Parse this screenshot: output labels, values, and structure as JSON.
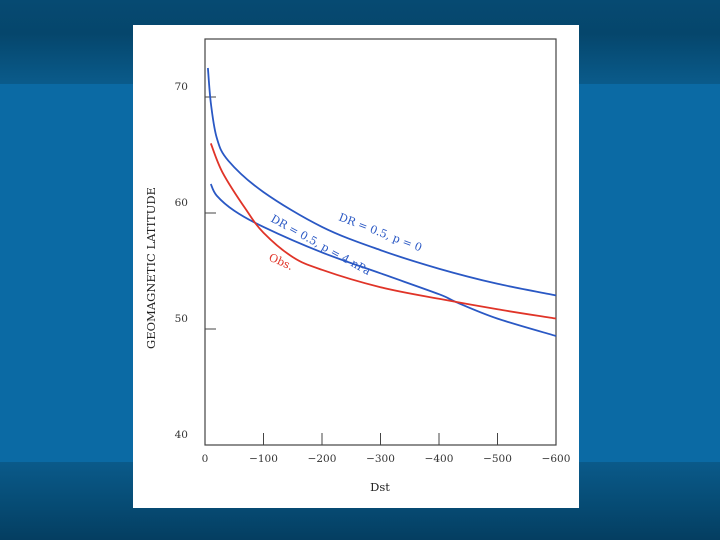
{
  "chart_data": {
    "type": "line",
    "xlabel": "Dst",
    "ylabel": "GEOMAGNETIC LATITUDE",
    "xlim": [
      0,
      -600
    ],
    "ylim": [
      40,
      75
    ],
    "x_ticks": [
      0,
      -100,
      -200,
      -300,
      -400,
      -500,
      -600
    ],
    "x_tick_labels": [
      "0",
      "−100",
      "−200",
      "−300",
      "−400",
      "−500",
      "−600"
    ],
    "y_ticks": [
      40,
      50,
      60,
      70
    ],
    "y_tick_labels": [
      "40",
      "50",
      "60",
      "70"
    ],
    "grid": false,
    "series": [
      {
        "name": "DR = 0.5, p = 0",
        "color": "#2a58c4",
        "points": [
          [
            -5,
            72.5
          ],
          [
            -10,
            69.5
          ],
          [
            -20,
            66.5
          ],
          [
            -40,
            64.5
          ],
          [
            -100,
            61.8
          ],
          [
            -200,
            58.8
          ],
          [
            -300,
            56.8
          ],
          [
            -400,
            55.2
          ],
          [
            -500,
            53.9
          ],
          [
            -600,
            52.9
          ]
        ]
      },
      {
        "name": "DR = 0.5, p = 4 nPa",
        "color": "#2a58c4",
        "points": [
          [
            -10,
            62.5
          ],
          [
            -20,
            61.5
          ],
          [
            -50,
            60.2
          ],
          [
            -100,
            58.8
          ],
          [
            -200,
            56.6
          ],
          [
            -300,
            54.8
          ],
          [
            -400,
            53.0
          ],
          [
            -430,
            52.3
          ],
          [
            -500,
            50.9
          ],
          [
            -600,
            49.4
          ]
        ]
      },
      {
        "name": "Obs.",
        "color": "#e03428",
        "points": [
          [
            -10,
            66.0
          ],
          [
            -30,
            63.5
          ],
          [
            -70,
            60.3
          ],
          [
            -100,
            58.3
          ],
          [
            -150,
            56.2
          ],
          [
            -200,
            55.1
          ],
          [
            -300,
            53.6
          ],
          [
            -400,
            52.6
          ],
          [
            -500,
            51.7
          ],
          [
            -600,
            50.9
          ]
        ]
      }
    ],
    "annotations": [
      {
        "text": "DR = 0.5, p = 0",
        "series": 0
      },
      {
        "text": "DR = 0.5, p = 4 nPa",
        "series": 1
      },
      {
        "text": "Obs.",
        "series": 2
      }
    ]
  }
}
